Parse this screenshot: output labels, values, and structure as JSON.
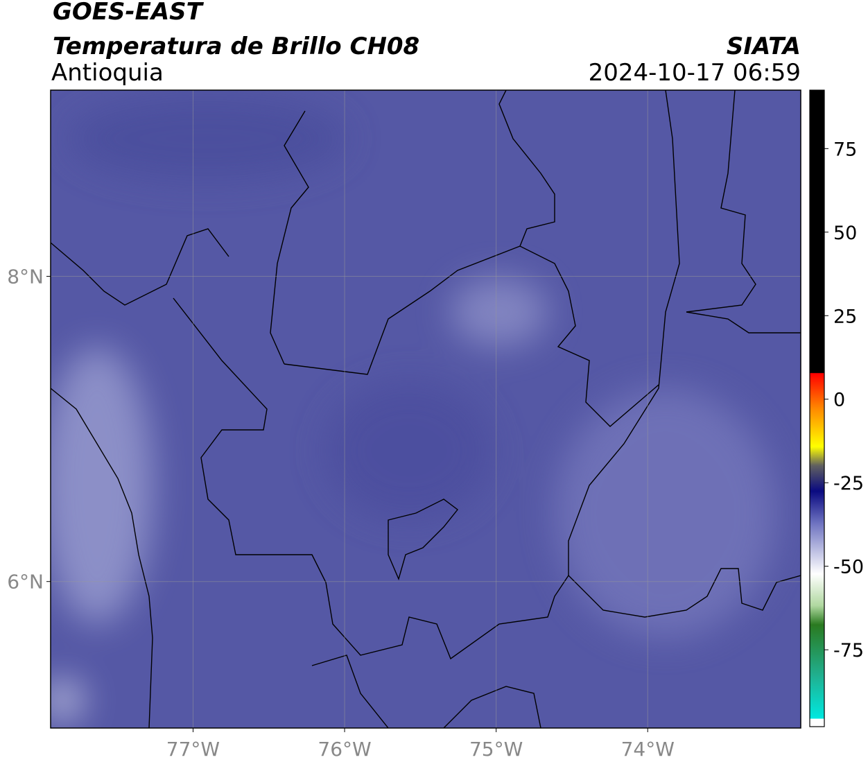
{
  "header": {
    "title": "GOES-EAST",
    "subtitle": "Temperatura de Brillo CH08",
    "region": "Antioquia",
    "agency": "SIATA",
    "datetime": "2024-10-17 06:59"
  },
  "map": {
    "xlim": [
      -77.94,
      -72.99
    ],
    "ylim": [
      5.04,
      9.22
    ],
    "xticks": [
      {
        "value": -77,
        "label": "77°W"
      },
      {
        "value": -76,
        "label": "76°W"
      },
      {
        "value": -75,
        "label": "75°W"
      },
      {
        "value": -74,
        "label": "74°W"
      }
    ],
    "yticks": [
      {
        "value": 8,
        "label": "8°N"
      },
      {
        "value": 6,
        "label": "6°N"
      }
    ],
    "grid": true
  },
  "colorbar": {
    "lim": [
      -98,
      92.5
    ],
    "ticks": [
      75,
      50,
      25,
      0,
      -25,
      -50,
      -75
    ]
  }
}
